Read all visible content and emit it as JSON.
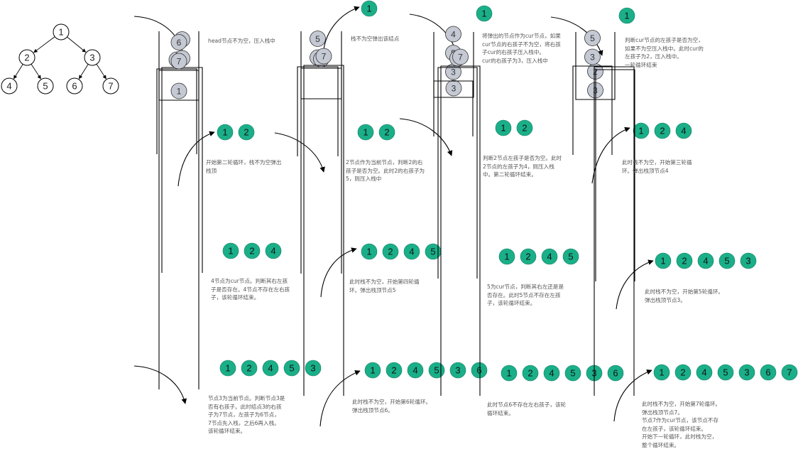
{
  "colors": {
    "line": "#000000",
    "out_fill": "#1aaf88",
    "out_stroke": "#0f7a5e",
    "stack_fill": "#c4c9d3",
    "stack_stroke": "#333333",
    "note_text": "#555555"
  },
  "tree": {
    "nodes": [
      "1",
      "2",
      "3",
      "4",
      "5",
      "6",
      "7"
    ],
    "edges": [
      [
        "1",
        "2"
      ],
      [
        "1",
        "3"
      ],
      [
        "2",
        "4"
      ],
      [
        "2",
        "5"
      ],
      [
        "3",
        "6"
      ],
      [
        "3",
        "7"
      ]
    ]
  },
  "steps": [
    {
      "stack": [
        "1"
      ],
      "output": [],
      "arrow": "in",
      "note": [
        "head节点不为空，压入栈中"
      ]
    },
    {
      "stack": [],
      "output": [
        "1"
      ],
      "arrow": "out",
      "note": [
        "栈不为空弹出该结点"
      ]
    },
    {
      "stack": [
        "3"
      ],
      "output": [
        "1"
      ],
      "arrow": "in",
      "note": [
        "将弹出的节点作为cur节点，如果",
        "cur节点的右孩子不为空，将右孩",
        "子cur的右孩子压入栈中。",
        "cur的右孩子为3，压入栈中"
      ]
    },
    {
      "stack": [
        "3",
        "2"
      ],
      "output": [
        "1"
      ],
      "arrow": "in",
      "note": [
        "判断cur节点的左孩子是否为空，",
        "如果不为空压入栈中。此时cur的",
        "左孩子为2，压入栈中。",
        "一轮循环结束"
      ]
    },
    {
      "stack": [
        "3"
      ],
      "output": [
        "1",
        "2"
      ],
      "arrow": "out",
      "note": [
        "开始第二轮循环，栈不为空弹出",
        "栈顶"
      ]
    },
    {
      "stack": [
        "3",
        "5"
      ],
      "output": [
        "1",
        "2"
      ],
      "arrow": "in",
      "note": [
        "2节点作为当前节点，判断2的右",
        "孩子是否为空。此时2的右孩子为",
        "5，则压入栈中"
      ]
    },
    {
      "stack": [
        "3",
        "5",
        "4"
      ],
      "output": [
        "1",
        "2"
      ],
      "arrow": "in",
      "note": [
        "判断2节点左孩子是否为空。此时",
        "2节点的左孩子为4，则压入栈",
        "中。第二轮循环结束。"
      ]
    },
    {
      "stack": [
        "3",
        "5"
      ],
      "output": [
        "1",
        "2",
        "4"
      ],
      "arrow": "out",
      "note": [
        "此时栈不为空，开始第三轮循",
        "环。弹出栈顶节点4"
      ]
    },
    {
      "stack": [
        "3",
        "5"
      ],
      "output": [
        "1",
        "2",
        "4"
      ],
      "arrow": "none",
      "note": [
        "4节点为cur节点。判断其右左孩",
        "子是否存在。4节点不存在左右孩",
        "子，该轮循环结束。"
      ]
    },
    {
      "stack": [
        "3"
      ],
      "output": [
        "1",
        "2",
        "4",
        "5"
      ],
      "arrow": "out",
      "note": [
        "此时栈不为空，开始第四轮循",
        "环。弹出栈顶节点5"
      ]
    },
    {
      "stack": [
        "3"
      ],
      "output": [
        "1",
        "2",
        "4",
        "5"
      ],
      "arrow": "none",
      "note": [
        "5为cur节点，判断其右左还是是",
        "否存在。此时5节点不存在左孩",
        "子，该轮循环结束。"
      ]
    },
    {
      "stack": [],
      "output": [
        "1",
        "2",
        "4",
        "5",
        "3"
      ],
      "arrow": "out",
      "note": [
        "此时栈不为空，开始第5轮循环。",
        "弹出栈顶节点3。"
      ]
    },
    {
      "stack": [
        "7",
        "6"
      ],
      "output": [
        "1",
        "2",
        "4",
        "5",
        "3"
      ],
      "arrow": "in",
      "note": [
        "节点3为当前节点。判断节点3是",
        "否有右孩子。此时结点3的右孩",
        "子为7节点，左孩子为6节点，",
        "7节点先入栈，之后6再入栈。",
        "该轮循环结束。"
      ]
    },
    {
      "stack": [
        "7"
      ],
      "output": [
        "1",
        "2",
        "4",
        "5",
        "3",
        "6"
      ],
      "arrow": "out",
      "note": [
        "此时栈不为空，开始第6轮循环。",
        "弹出栈顶节点6。"
      ]
    },
    {
      "stack": [
        "7"
      ],
      "output": [
        "1",
        "2",
        "4",
        "5",
        "3",
        "6"
      ],
      "arrow": "none",
      "note": [
        "此时节点6不存在左右孩子，该轮",
        "循环结束。"
      ]
    },
    {
      "stack": [],
      "output": [
        "1",
        "2",
        "4",
        "5",
        "3",
        "6",
        "7"
      ],
      "arrow": "out",
      "note": [
        "此时栈不为空，开始第7轮循环。",
        "弹出栈顶节点7。",
        "节点7作为cur节点，该节点不存",
        "在左孩子，该轮循环结束。",
        "开始下一轮循环，此时栈为空，",
        "整个循环结束。"
      ]
    }
  ]
}
